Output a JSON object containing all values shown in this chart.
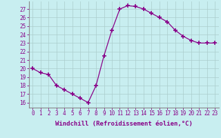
{
  "x": [
    0,
    1,
    2,
    3,
    4,
    5,
    6,
    7,
    8,
    9,
    10,
    11,
    12,
    13,
    14,
    15,
    16,
    17,
    18,
    19,
    20,
    21,
    22,
    23
  ],
  "y": [
    20.0,
    19.5,
    19.3,
    18.0,
    17.5,
    17.0,
    16.5,
    16.0,
    18.0,
    21.5,
    24.5,
    27.0,
    27.4,
    27.3,
    27.0,
    26.5,
    26.0,
    25.5,
    24.5,
    23.8,
    23.3,
    23.0,
    23.0,
    23.0
  ],
  "line_color": "#880088",
  "marker": "+",
  "marker_size": 4,
  "bg_color": "#c8eef0",
  "grid_color": "#aacccc",
  "xlabel": "Windchill (Refroidissement éolien,°C)",
  "ylabel_ticks": [
    16,
    17,
    18,
    19,
    20,
    21,
    22,
    23,
    24,
    25,
    26,
    27
  ],
  "xlim": [
    -0.5,
    23.5
  ],
  "ylim": [
    15.4,
    27.9
  ],
  "tick_fontsize": 5.5,
  "xlabel_fontsize": 6.5,
  "spine_color": "#888888"
}
